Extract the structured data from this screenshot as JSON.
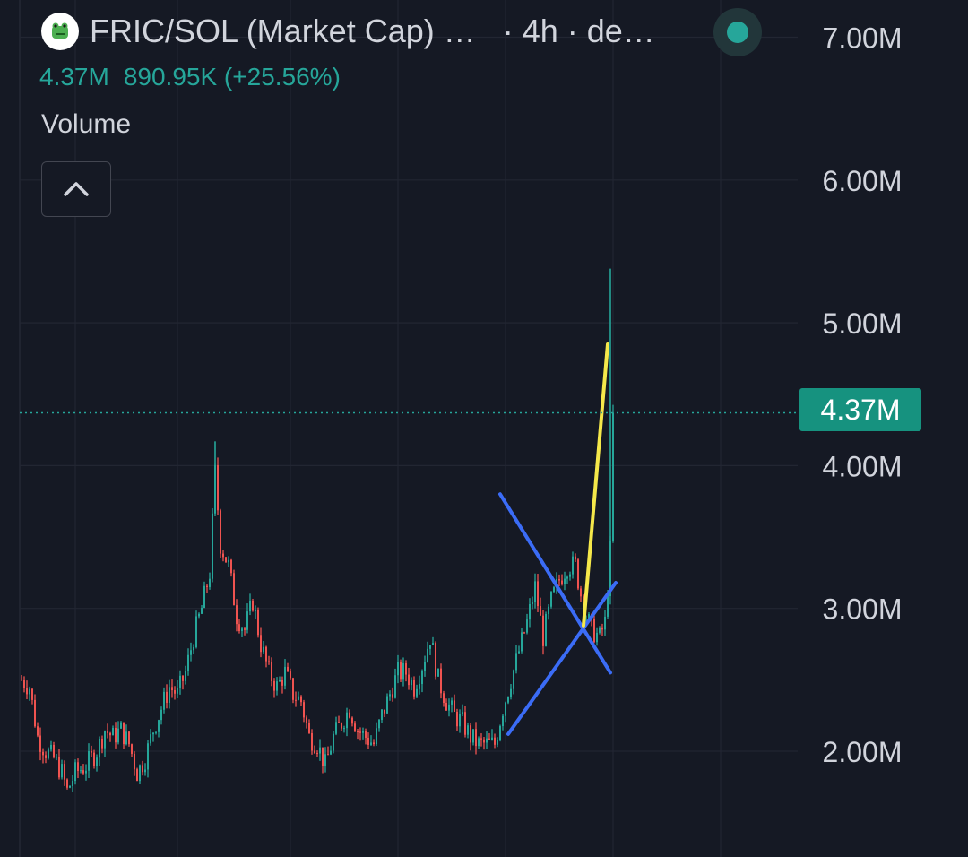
{
  "header": {
    "title": "FRIC/SOL (Market Cap) …",
    "interval": "· 4h · de…",
    "last_value": "4.37M",
    "change_text": "890.95K (+25.56%)",
    "status_color": "#26a69a"
  },
  "volume_label": "Volume",
  "collapse_icon": "chevron-up-icon",
  "colors": {
    "background": "#151924",
    "up": "#26a69a",
    "down": "#ef5350",
    "grid": "#222632",
    "axis_text": "#d1d4dc",
    "last_price_line": "#26a69a"
  },
  "chart_data": {
    "type": "candlestick",
    "title": "FRIC/SOL (Market Cap)",
    "interval": "4h",
    "y_axis": {
      "position": "right",
      "ticks": [
        2000000,
        3000000,
        4000000,
        5000000,
        6000000,
        7000000
      ],
      "tick_labels": [
        "2.00M",
        "3.00M",
        "4.00M",
        "5.00M",
        "6.00M",
        "7.00M"
      ],
      "range": [
        1300000,
        7250000
      ]
    },
    "last_price": 4370000,
    "last_price_label": "4.37M",
    "grid": true,
    "close_path": [
      [
        0,
        2.5
      ],
      [
        3,
        2.45
      ],
      [
        6,
        2.1
      ],
      [
        9,
        2.0
      ],
      [
        12,
        1.95
      ],
      [
        15,
        1.85
      ],
      [
        17,
        1.72
      ],
      [
        20,
        1.85
      ],
      [
        24,
        1.9
      ],
      [
        28,
        2.0
      ],
      [
        31,
        2.15
      ],
      [
        34,
        2.1
      ],
      [
        37,
        2.15
      ],
      [
        40,
        2.05
      ],
      [
        43,
        1.85
      ],
      [
        46,
        1.95
      ],
      [
        49,
        2.15
      ],
      [
        52,
        2.3
      ],
      [
        55,
        2.45
      ],
      [
        58,
        2.4
      ],
      [
        61,
        2.55
      ],
      [
        64,
        2.8
      ],
      [
        67,
        3.0
      ],
      [
        70,
        3.25
      ],
      [
        72,
        3.95
      ],
      [
        74,
        3.45
      ],
      [
        77,
        3.3
      ],
      [
        80,
        2.95
      ],
      [
        83,
        2.85
      ],
      [
        86,
        3.05
      ],
      [
        89,
        2.75
      ],
      [
        92,
        2.55
      ],
      [
        95,
        2.45
      ],
      [
        98,
        2.55
      ],
      [
        101,
        2.4
      ],
      [
        104,
        2.35
      ],
      [
        107,
        2.1
      ],
      [
        110,
        2.05
      ],
      [
        113,
        1.9
      ],
      [
        116,
        2.1
      ],
      [
        119,
        2.2
      ],
      [
        122,
        2.3
      ],
      [
        125,
        2.15
      ],
      [
        128,
        2.1
      ],
      [
        131,
        2.05
      ],
      [
        134,
        2.25
      ],
      [
        137,
        2.4
      ],
      [
        140,
        2.55
      ],
      [
        143,
        2.55
      ],
      [
        146,
        2.45
      ],
      [
        149,
        2.6
      ],
      [
        152,
        2.8
      ],
      [
        155,
        2.5
      ],
      [
        158,
        2.35
      ],
      [
        161,
        2.25
      ],
      [
        164,
        2.2
      ],
      [
        167,
        2.1
      ],
      [
        170,
        2.05
      ],
      [
        173,
        2.05
      ],
      [
        176,
        2.05
      ],
      [
        179,
        2.3
      ],
      [
        182,
        2.5
      ],
      [
        185,
        2.7
      ],
      [
        188,
        2.9
      ],
      [
        191,
        3.15
      ],
      [
        194,
        2.8
      ],
      [
        197,
        3.05
      ],
      [
        200,
        3.2
      ],
      [
        203,
        3.3
      ],
      [
        206,
        3.3
      ],
      [
        209,
        3.0
      ],
      [
        212,
        2.85
      ],
      [
        215,
        2.8
      ],
      [
        217,
        2.9
      ],
      [
        219,
        3.4
      ],
      [
        220,
        4.37
      ]
    ],
    "wicks": [
      {
        "x": 72,
        "high": 4.17
      },
      {
        "x": 219,
        "high": 5.38
      }
    ],
    "x_grid": [
      20,
      58,
      100,
      140,
      180,
      220,
      260
    ]
  },
  "drawings": [
    {
      "name": "blue-descending-line",
      "color": "#3b6cf6",
      "from": [
        178,
        3.8
      ],
      "to": [
        219,
        2.55
      ]
    },
    {
      "name": "blue-ascending-line",
      "color": "#3b6cf6",
      "from": [
        181,
        2.12
      ],
      "to": [
        221,
        3.18
      ]
    },
    {
      "name": "yellow-trend-line",
      "color": "#f5e84a",
      "from": [
        209,
        2.88
      ],
      "to": [
        218,
        4.85
      ]
    }
  ]
}
